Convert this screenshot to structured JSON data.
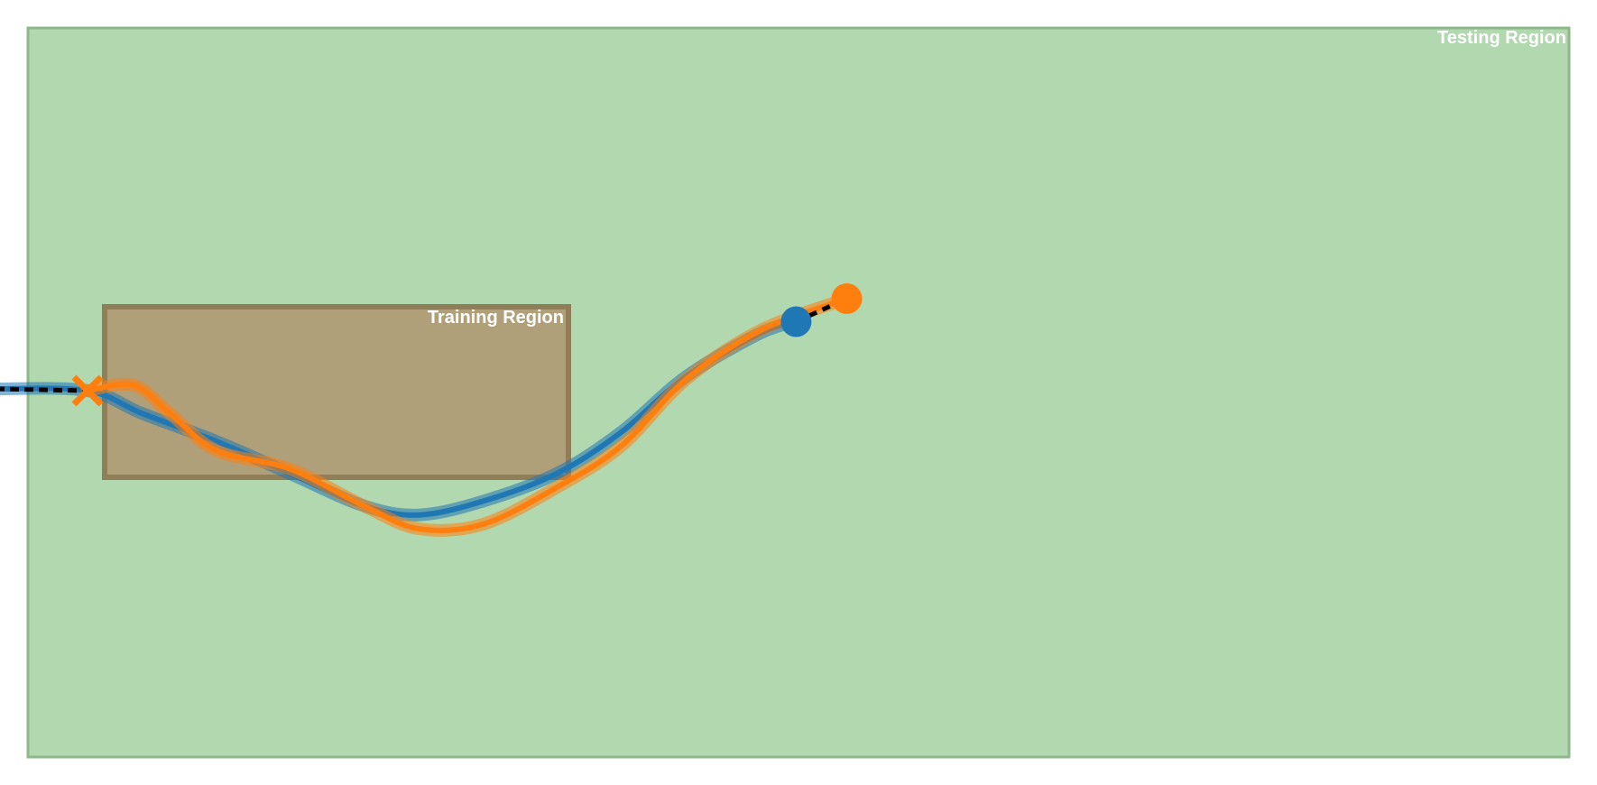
{
  "regions": {
    "testing": {
      "label": "Testing Region",
      "fill": "#b2d8b0",
      "stroke": "#8cb88a"
    },
    "training": {
      "label": "Training Region",
      "fill": "#b0a07a",
      "stroke": "#8f7e58"
    }
  },
  "trajectories": [
    {
      "name": "blue-trajectory",
      "color": "#1f77b4",
      "start_marker": "circle",
      "end_marker": "circle",
      "points": [
        [
          -1.0,
          0.02
        ],
        [
          0.0,
          0.0
        ],
        [
          0.6,
          -0.25
        ],
        [
          1.4,
          -0.55
        ],
        [
          2.2,
          -0.9
        ],
        [
          3.0,
          -1.25
        ],
        [
          3.6,
          -1.35
        ],
        [
          4.3,
          -1.2
        ],
        [
          5.1,
          -0.9
        ],
        [
          5.8,
          -0.45
        ],
        [
          6.5,
          0.15
        ],
        [
          7.3,
          0.62
        ],
        [
          7.7,
          0.75
        ]
      ]
    },
    {
      "name": "orange-trajectory",
      "color": "#ff7f0e",
      "start_marker": "x",
      "end_marker": "circle",
      "points": [
        [
          0.0,
          0.0
        ],
        [
          0.5,
          0.06
        ],
        [
          0.9,
          -0.25
        ],
        [
          1.4,
          -0.65
        ],
        [
          2.2,
          -0.85
        ],
        [
          3.0,
          -1.25
        ],
        [
          3.6,
          -1.5
        ],
        [
          4.3,
          -1.45
        ],
        [
          5.1,
          -1.05
        ],
        [
          5.8,
          -0.6
        ],
        [
          6.5,
          0.12
        ],
        [
          7.3,
          0.65
        ],
        [
          8.1,
          0.95
        ],
        [
          8.25,
          1.0
        ]
      ]
    }
  ],
  "reference_link": {
    "color": "#000000",
    "from": [
      7.7,
      0.75
    ],
    "to": [
      8.25,
      1.0
    ]
  },
  "start_link": {
    "color": "#000000",
    "from": [
      -1.0,
      0.02
    ],
    "to": [
      0.0,
      0.0
    ]
  },
  "origin_marker": {
    "shape": "chevron-left-icon",
    "color": "#a0a0a0",
    "at": [
      -1.1,
      0.02
    ]
  }
}
